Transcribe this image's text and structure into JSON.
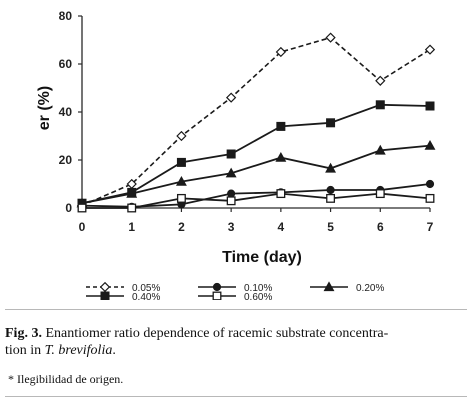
{
  "chart_data": {
    "type": "line",
    "title": "",
    "xlabel": "Time (day)",
    "ylabel": "er (%)",
    "x": [
      0,
      1,
      2,
      3,
      4,
      5,
      6,
      7
    ],
    "xlim": [
      0,
      7
    ],
    "ylim": [
      0,
      80
    ],
    "xticks": [
      "0",
      "1",
      "2",
      "3",
      "4",
      "5",
      "6",
      "7"
    ],
    "yticks": [
      "0",
      "20",
      "40",
      "60",
      "80"
    ],
    "grid": false,
    "legend_position": "bottom",
    "series": [
      {
        "name": "0.05%",
        "marker": "diamond-open",
        "line": "dashed",
        "values": [
          1,
          10,
          30,
          46,
          65,
          71,
          53,
          66
        ]
      },
      {
        "name": "0.10%",
        "marker": "circle-filled",
        "line": "solid",
        "values": [
          1,
          0.5,
          1.5,
          6,
          6.5,
          7.5,
          7.5,
          10
        ]
      },
      {
        "name": "0.20%",
        "marker": "triangle-filled",
        "line": "solid",
        "values": [
          2,
          6,
          11,
          14.5,
          21,
          16.5,
          24,
          26
        ]
      },
      {
        "name": "0.40%",
        "marker": "square-filled",
        "line": "solid",
        "values": [
          2,
          6.5,
          19,
          22.5,
          34,
          35.5,
          43,
          42.5
        ]
      },
      {
        "name": "0.60%",
        "marker": "square-open",
        "line": "solid",
        "values": [
          0,
          0,
          4,
          3,
          6,
          4,
          6,
          4
        ]
      }
    ],
    "legend": [
      {
        "label": "0.05%",
        "series": 0
      },
      {
        "label": "0.10%",
        "series": 1
      },
      {
        "label": "0.20%",
        "series": 2
      },
      {
        "label": "0.40%",
        "series": 3
      },
      {
        "label": "0.60%",
        "series": 4
      }
    ]
  },
  "caption": {
    "label": "Fig. 3.",
    "text_line1": "Enantiomer ratio dependence of racemic substrate concentra-",
    "text_line2_prefix": "tion in ",
    "species": "T. brevifolia",
    "text_line2_suffix": "."
  },
  "footnote": "* Ilegibilidad de origen."
}
